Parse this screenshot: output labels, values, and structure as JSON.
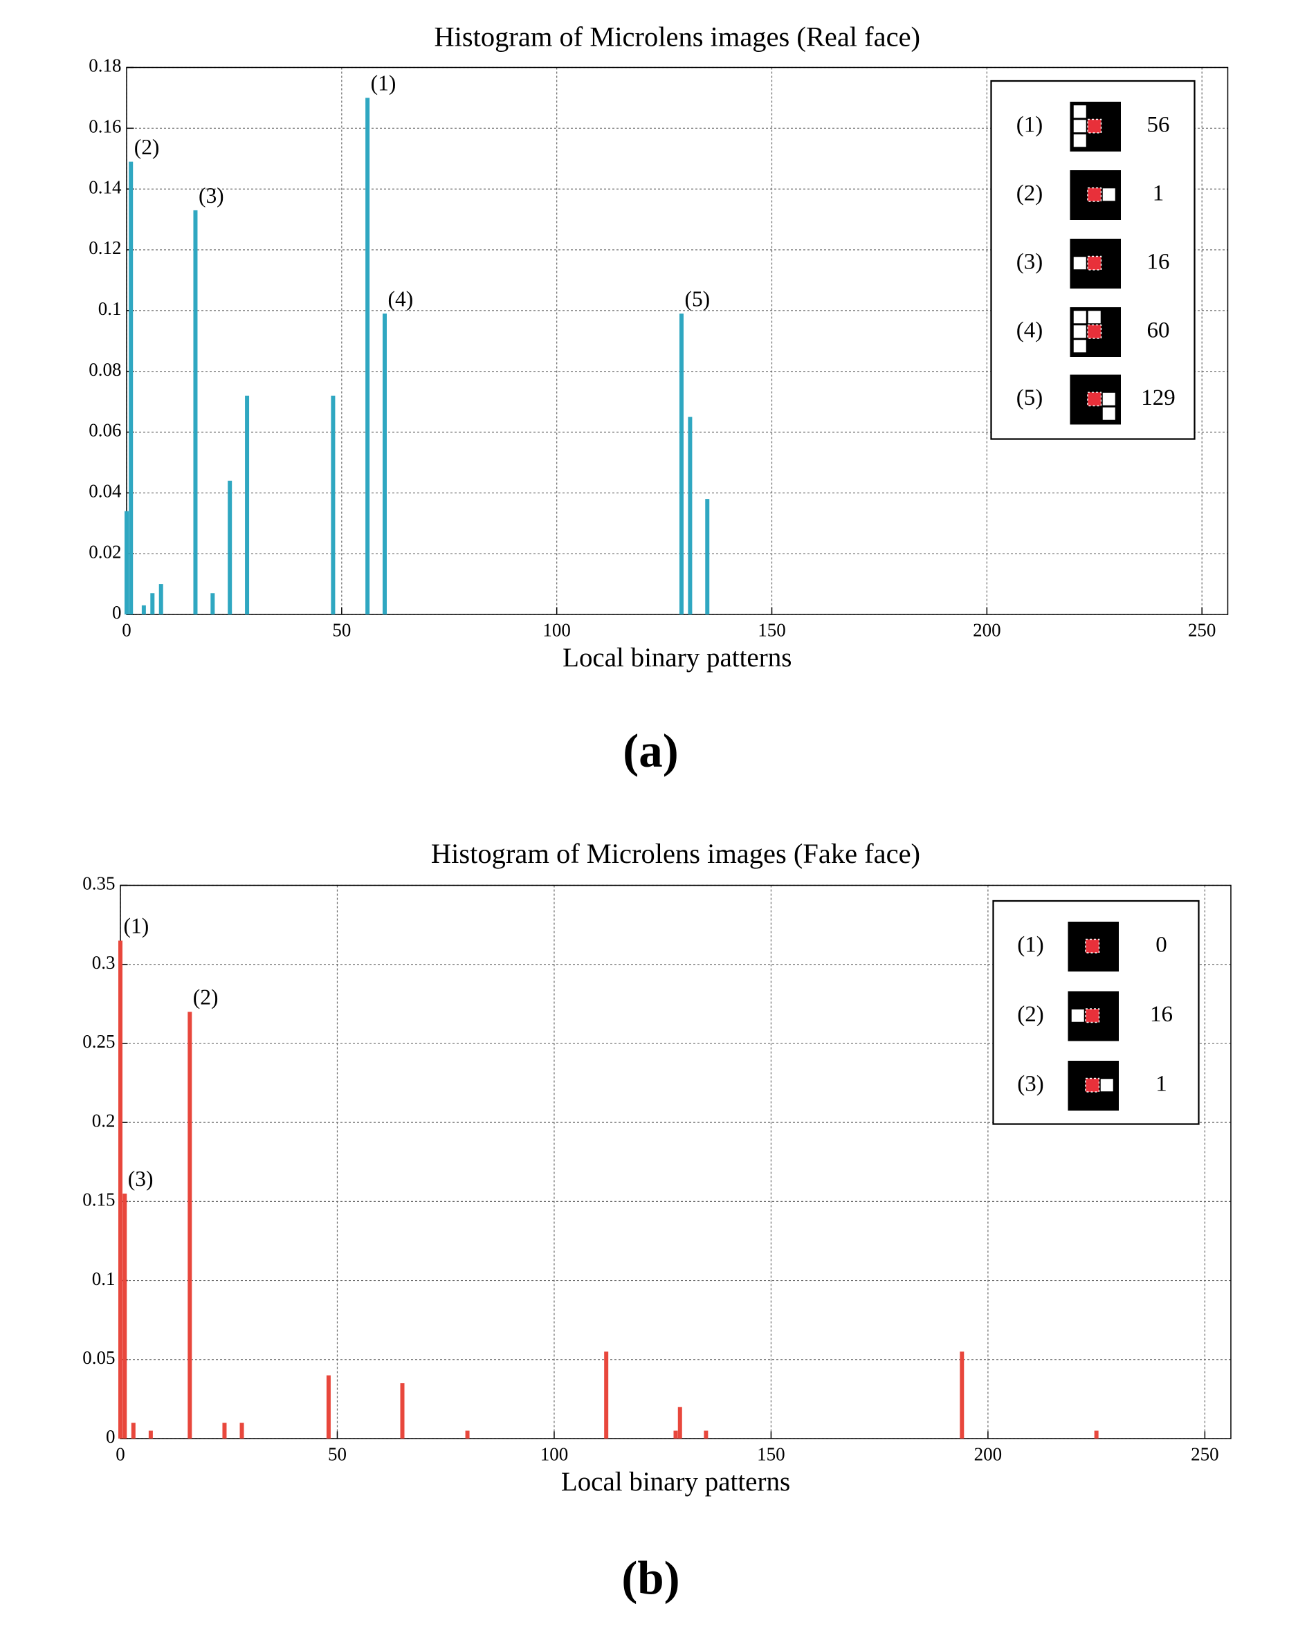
{
  "chart_data": [
    {
      "type": "bar",
      "title": "Histogram of Microlens images (Real face)",
      "x_label": "Local binary patterns",
      "caption": "(a)",
      "color": "#2fa7c1",
      "grid": true,
      "x": [
        0,
        1,
        4,
        6,
        8,
        16,
        20,
        24,
        28,
        48,
        56,
        60,
        129,
        131,
        135
      ],
      "values": [
        0.034,
        0.149,
        0.003,
        0.007,
        0.01,
        0.133,
        0.007,
        0.044,
        0.072,
        0.072,
        0.17,
        0.099,
        0.099,
        0.065,
        0.038
      ],
      "bar_labels": [
        null,
        "(2)",
        null,
        null,
        null,
        "(3)",
        null,
        null,
        null,
        null,
        "(1)",
        "(4)",
        "(5)",
        null,
        null
      ],
      "xlim": [
        0,
        256
      ],
      "xticks": [
        0,
        50,
        100,
        150,
        200,
        250
      ],
      "ylim": [
        0,
        0.18
      ],
      "yticks": [
        0,
        0.02,
        0.04,
        0.06,
        0.08,
        0.1,
        0.12,
        0.14,
        0.16,
        0.18
      ],
      "legend": [
        {
          "label": "(1)",
          "code": 56
        },
        {
          "label": "(2)",
          "code": 1
        },
        {
          "label": "(3)",
          "code": 16
        },
        {
          "label": "(4)",
          "code": 60
        },
        {
          "label": "(5)",
          "code": 129
        }
      ]
    },
    {
      "type": "bar",
      "title": "Histogram of Microlens images (Fake face)",
      "x_label": "Local binary patterns",
      "caption": "(b)",
      "color": "#e8473c",
      "grid": true,
      "x": [
        0,
        1,
        3,
        7,
        16,
        24,
        28,
        48,
        65,
        80,
        112,
        128,
        129,
        135,
        194,
        225
      ],
      "values": [
        0.315,
        0.155,
        0.01,
        0.005,
        0.27,
        0.01,
        0.01,
        0.04,
        0.035,
        0.005,
        0.055,
        0.005,
        0.02,
        0.005,
        0.055,
        0.005
      ],
      "bar_labels": [
        "(1)",
        "(3)",
        null,
        null,
        "(2)",
        null,
        null,
        null,
        null,
        null,
        null,
        null,
        null,
        null,
        null,
        null
      ],
      "xlim": [
        0,
        256
      ],
      "xticks": [
        0,
        50,
        100,
        150,
        200,
        250
      ],
      "ylim": [
        0,
        0.35
      ],
      "yticks": [
        0,
        0.05,
        0.1,
        0.15,
        0.2,
        0.25,
        0.3,
        0.35
      ],
      "legend": [
        {
          "label": "(1)",
          "code": 0
        },
        {
          "label": "(2)",
          "code": 16
        },
        {
          "label": "(3)",
          "code": 1
        }
      ]
    }
  ]
}
